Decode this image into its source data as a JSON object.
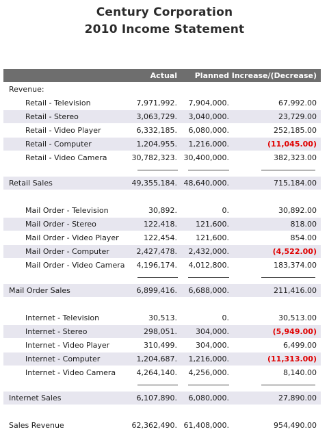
{
  "title": "Century Corporation",
  "subtitle": "2010 Income Statement",
  "columns": {
    "actual": "Actual",
    "planned": "Planned",
    "diff": "Increase/(Decrease)"
  },
  "revenue_label": "Revenue:",
  "retail": [
    {
      "label": "Retail - Television",
      "actual": "7,971,992.",
      "planned": "7,904,000.",
      "diff": "67,992.00",
      "neg": false
    },
    {
      "label": "Retail - Stereo",
      "actual": "3,063,729.",
      "planned": "3,040,000.",
      "diff": "23,729.00",
      "neg": false
    },
    {
      "label": "Retail - Video Player",
      "actual": "6,332,185.",
      "planned": "6,080,000.",
      "diff": "252,185.00",
      "neg": false
    },
    {
      "label": "Retail - Computer",
      "actual": "1,204,955.",
      "planned": "1,216,000.",
      "diff": "(11,045.00)",
      "neg": true
    },
    {
      "label": "Retail - Video Camera",
      "actual": "30,782,323.",
      "planned": "30,400,000.",
      "diff": "382,323.00",
      "neg": false
    }
  ],
  "retail_total": {
    "label": "Retail Sales",
    "actual": "49,355,184.",
    "planned": "48,640,000.",
    "diff": "715,184.00"
  },
  "mail": [
    {
      "label": "Mail Order - Television",
      "actual": "30,892.",
      "planned": "0.",
      "diff": "30,892.00",
      "neg": false
    },
    {
      "label": "Mail Order - Stereo",
      "actual": "122,418.",
      "planned": "121,600.",
      "diff": "818.00",
      "neg": false
    },
    {
      "label": "Mail Order - Video Player",
      "actual": "122,454.",
      "planned": "121,600.",
      "diff": "854.00",
      "neg": false
    },
    {
      "label": "Mail Order - Computer",
      "actual": "2,427,478.",
      "planned": "2,432,000.",
      "diff": "(4,522.00)",
      "neg": true
    },
    {
      "label": "Mail Order - Video Camera",
      "actual": "4,196,174.",
      "planned": "4,012,800.",
      "diff": "183,374.00",
      "neg": false
    }
  ],
  "mail_total": {
    "label": "Mail Order Sales",
    "actual": "6,899,416.",
    "planned": "6,688,000.",
    "diff": "211,416.00"
  },
  "internet": [
    {
      "label": "Internet - Television",
      "actual": "30,513.",
      "planned": "0.",
      "diff": "30,513.00",
      "neg": false
    },
    {
      "label": "Internet - Stereo",
      "actual": "298,051.",
      "planned": "304,000.",
      "diff": "(5,949.00)",
      "neg": true
    },
    {
      "label": "Internet - Video Player",
      "actual": "310,499.",
      "planned": "304,000.",
      "diff": "6,499.00",
      "neg": false
    },
    {
      "label": "Internet - Computer",
      "actual": "1,204,687.",
      "planned": "1,216,000.",
      "diff": "(11,313.00)",
      "neg": true
    },
    {
      "label": "Internet - Video Camera",
      "actual": "4,264,140.",
      "planned": "4,256,000.",
      "diff": "8,140.00",
      "neg": false
    }
  ],
  "internet_total": {
    "label": "Internet Sales",
    "actual": "6,107,890.",
    "planned": "6,080,000.",
    "diff": "27,890.00"
  },
  "grand_total": {
    "label": "Sales Revenue",
    "actual": "62,362,490.",
    "planned": "61,408,000.",
    "diff": "954,490.00"
  },
  "colors": {
    "header_bg": "#6e6e6e",
    "shade": "#e7e6ef",
    "negative": "#e00000"
  }
}
